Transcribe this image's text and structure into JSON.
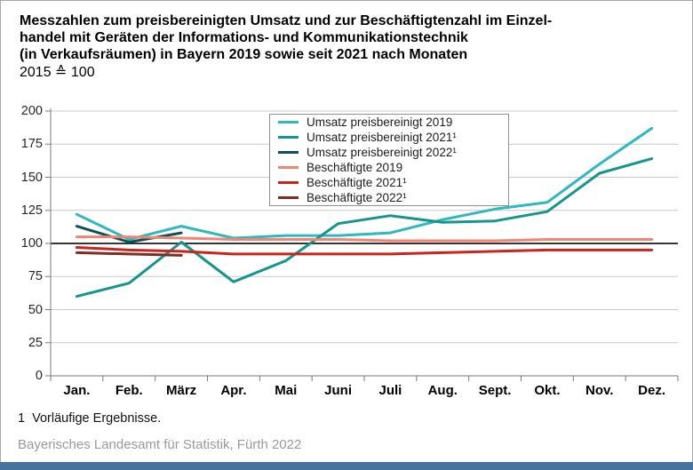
{
  "title": {
    "lines": [
      "Messzahlen zum preisbereinigten Umsatz und zur Beschäftigtenzahl im Einzel-",
      "handel mit Geräten der Informations- und Kommunikationstechnik",
      "(in Verkaufsräumen) in Bayern 2019 sowie seit 2021 nach Monaten"
    ],
    "index_base": "2015 ≙ 100"
  },
  "chart_data": {
    "type": "line",
    "categories": [
      "Jan.",
      "Feb.",
      "März",
      "Apr.",
      "Mai",
      "Juni",
      "Juli",
      "Aug.",
      "Sept.",
      "Okt.",
      "Nov.",
      "Dez."
    ],
    "y_ticks": [
      200,
      175,
      150,
      125,
      100,
      75,
      50,
      25,
      0
    ],
    "ylim": [
      0,
      200
    ],
    "baseline": 100,
    "grid": true,
    "legend_position": "inside-top-center",
    "series": [
      {
        "name": "Umsatz preisbereinigt 2019",
        "color": "#2fb8bd",
        "values": [
          122,
          103,
          113,
          104,
          106,
          106,
          108,
          118,
          126,
          131,
          160,
          187
        ]
      },
      {
        "name": "Umsatz preisbereinigt 2021¹",
        "color": "#17958d",
        "values": [
          60,
          70,
          101,
          71,
          87,
          115,
          121,
          116,
          117,
          124,
          153,
          164
        ]
      },
      {
        "name": "Umsatz preisbereinigt 2022¹",
        "color": "#114f56",
        "values": [
          113,
          101,
          108
        ]
      },
      {
        "name": "Beschäftigte 2019",
        "color": "#f08577",
        "values": [
          105,
          105,
          104,
          103,
          103,
          103,
          102,
          102,
          102,
          103,
          103,
          103
        ]
      },
      {
        "name": "Beschäftigte 2021¹",
        "color": "#c9251f",
        "values": [
          97,
          95,
          94,
          92,
          92,
          92,
          92,
          93,
          94,
          95,
          95,
          95
        ]
      },
      {
        "name": "Beschäftigte 2022¹",
        "color": "#7d2d23",
        "values": [
          93,
          92,
          91
        ]
      }
    ],
    "styles": {
      "gridline_color": "#c9c9c9",
      "baseline_color": "#1a1a1a",
      "axis_color": "#7a7a7a"
    }
  },
  "footnote": "1  Vorläufige Ergebnisse.",
  "source": "Bayerisches Landesamt für Statistik, Fürth 2022",
  "accent_bar_color": "#44749d"
}
